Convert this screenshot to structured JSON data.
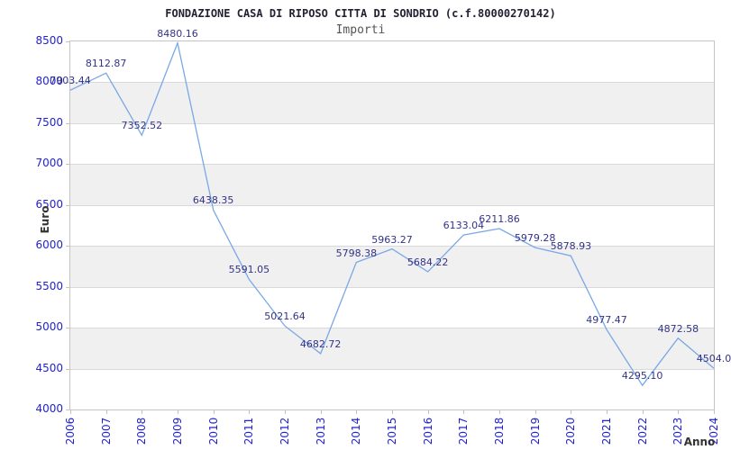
{
  "header": {
    "title": "FONDAZIONE CASA DI RIPOSO CITTA DI SONDRIO (c.f.80000270142)",
    "subtitle": "Importi"
  },
  "chart_data": {
    "type": "line",
    "title": "FONDAZIONE CASA DI RIPOSO CITTA DI SONDRIO (c.f.80000270142)",
    "subtitle": "Importi",
    "xlabel": "Anno",
    "ylabel": "Euro",
    "categories": [
      "2006",
      "2007",
      "2008",
      "2009",
      "2010",
      "2011",
      "2012",
      "2013",
      "2014",
      "2015",
      "2016",
      "2017",
      "2018",
      "2019",
      "2020",
      "2021",
      "2022",
      "2023",
      "2024"
    ],
    "values": [
      7903.44,
      8112.87,
      7352.52,
      8480.16,
      6438.35,
      5591.05,
      5021.64,
      4682.72,
      5798.38,
      5963.27,
      5684.22,
      6133.04,
      6211.86,
      5979.28,
      5878.93,
      4977.47,
      4295.1,
      4872.58,
      4504.0
    ],
    "point_labels": [
      "7903.44",
      "8112.87",
      "7352.52",
      "8480.16",
      "6438.35",
      "5591.05",
      "5021.64",
      "4682.72",
      "5798.38",
      "5963.27",
      "5684.22",
      "6133.04",
      "6211.86",
      "5979.28",
      "5878.93",
      "4977.47",
      "4295.10",
      "4872.58",
      "4504.0"
    ],
    "ylim": [
      4000,
      8500
    ],
    "ytick_step": 500,
    "ytick_labels": [
      "8500",
      "8000",
      "7500",
      "7000",
      "6500",
      "6000",
      "5500",
      "5000",
      "4500",
      "4000"
    ],
    "grid": "horizontal",
    "legend": "none",
    "band_fill": "alternating",
    "colors": {
      "line": "#79a8e6",
      "tick_label": "#2323cc",
      "point_label": "#333388",
      "title": "#222233",
      "subtitle": "#555555",
      "axis_label": "#333333",
      "band": "#f0f0f0",
      "gridline": "#d9d9d9",
      "border": "#c4c4c4",
      "background": "#ffffff"
    }
  }
}
